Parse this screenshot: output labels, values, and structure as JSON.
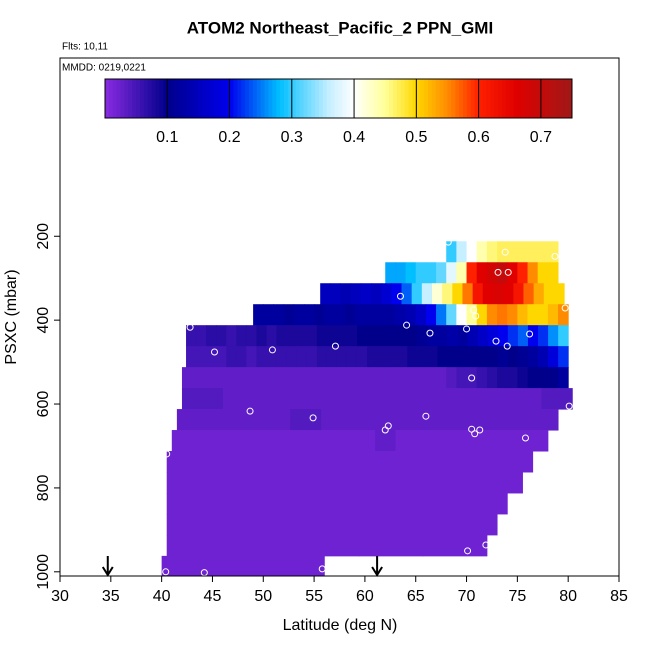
{
  "chart_data": {
    "type": "heatmap",
    "title": "ATOM2 Northeast_Pacific_2 PPN_GMI",
    "subtitle": "Flts: 10,11",
    "annotation": "MMDD: 0219,0221",
    "xlabel": "Latitude (deg N)",
    "ylabel": "PSXC (mbar)",
    "xlim": [
      30,
      85
    ],
    "xticks": [
      30,
      35,
      40,
      45,
      50,
      55,
      60,
      65,
      70,
      75,
      80,
      85
    ],
    "ylim": [
      1010,
      -225
    ],
    "yticks": [
      200,
      400,
      600,
      800,
      1000
    ],
    "colorbar_lim": [
      0,
      0.75
    ],
    "colorbar_ticks": [
      0.1,
      0.2,
      0.3,
      0.4,
      0.5,
      0.6,
      0.7
    ],
    "colorscale": [
      [
        0,
        "#8a2be2"
      ],
      [
        0.1,
        "#00008b"
      ],
      [
        0.2,
        "#0000ee"
      ],
      [
        0.28,
        "#00bfff"
      ],
      [
        0.36,
        "#c6efff"
      ],
      [
        0.4,
        "#ffffff"
      ],
      [
        0.45,
        "#ffff99"
      ],
      [
        0.5,
        "#ffd700"
      ],
      [
        0.55,
        "#ff8c00"
      ],
      [
        0.6,
        "#ff2000"
      ],
      [
        0.66,
        "#e00000"
      ],
      [
        0.75,
        "#a01818"
      ]
    ],
    "rows": [
      {
        "plim": [
          212,
          262
        ],
        "xlim": [
          68,
          79
        ],
        "values": [
          0.3,
          0.36,
          0.4,
          0.44,
          0.46,
          0.47,
          0.47,
          0.47,
          0.47,
          0.47,
          0.47
        ]
      },
      {
        "plim": [
          262,
          312
        ],
        "xlim": [
          62,
          79
        ],
        "values": [
          0.27,
          0.27,
          0.28,
          0.3,
          0.3,
          0.32,
          0.38,
          0.44,
          0.6,
          0.66,
          0.68,
          0.7,
          0.66,
          0.6,
          0.55,
          0.5,
          0.5
        ]
      },
      {
        "plim": [
          312,
          362
        ],
        "xlim": [
          55.6,
          79.6
        ],
        "values": [
          0.15,
          0.15,
          0.14,
          0.15,
          0.16,
          0.15,
          0.17,
          0.2,
          0.24,
          0.3,
          0.36,
          0.42,
          0.46,
          0.5,
          0.56,
          0.62,
          0.66,
          0.67,
          0.66,
          0.62,
          0.57,
          0.53,
          0.5,
          0.5
        ]
      },
      {
        "plim": [
          362,
          412
        ],
        "xlim": [
          49,
          80
        ],
        "values": [
          0.12,
          0.12,
          0.12,
          0.11,
          0.12,
          0.12,
          0.11,
          0.12,
          0.12,
          0.11,
          0.12,
          0.12,
          0.12,
          0.12,
          0.13,
          0.14,
          0.16,
          0.2,
          0.25,
          0.32,
          0.4,
          0.45,
          0.5,
          0.55,
          0.56,
          0.55,
          0.52,
          0.5,
          0.5,
          0.52,
          0.55
        ]
      },
      {
        "plim": [
          412,
          462
        ],
        "xlim": [
          42.4,
          80
        ],
        "values": [
          0.06,
          0.06,
          0.07,
          0.07,
          0.06,
          0.07,
          0.07,
          0.08,
          0.07,
          0.08,
          0.08,
          0.08,
          0.08,
          0.09,
          0.09,
          0.09,
          0.09,
          0.1,
          0.1,
          0.1,
          0.1,
          0.1,
          0.1,
          0.11,
          0.12,
          0.12,
          0.13,
          0.12,
          0.14,
          0.16,
          0.18,
          0.2,
          0.22,
          0.24,
          0.2,
          0.22,
          0.26,
          0.3
        ]
      },
      {
        "plim": [
          462,
          512
        ],
        "xlim": [
          42.4,
          80
        ],
        "values": [
          0.05,
          0.05,
          0.05,
          0.05,
          0.06,
          0.06,
          0.05,
          0.06,
          0.06,
          0.06,
          0.06,
          0.06,
          0.06,
          0.07,
          0.07,
          0.07,
          0.07,
          0.07,
          0.08,
          0.08,
          0.08,
          0.08,
          0.09,
          0.09,
          0.09,
          0.1,
          0.1,
          0.1,
          0.1,
          0.1,
          0.1,
          0.11,
          0.1,
          0.11,
          0.12,
          0.14,
          0.18,
          0.22
        ]
      },
      {
        "plim": [
          512,
          562
        ],
        "xlim": [
          42,
          80
        ],
        "values": [
          0.03,
          0.03,
          0.03,
          0.03,
          0.03,
          0.03,
          0.03,
          0.03,
          0.03,
          0.03,
          0.03,
          0.03,
          0.03,
          0.03,
          0.03,
          0.03,
          0.03,
          0.03,
          0.03,
          0.03,
          0.03,
          0.03,
          0.03,
          0.03,
          0.03,
          0.03,
          0.04,
          0.05,
          0.05,
          0.06,
          0.07,
          0.08,
          0.08,
          0.09,
          0.1,
          0.1,
          0.1,
          0.12
        ]
      },
      {
        "plim": [
          562,
          612
        ],
        "xlim": [
          42,
          80.4
        ],
        "values": [
          0.04,
          0.04,
          0.04,
          0.04,
          0.03,
          0.03,
          0.03,
          0.03,
          0.03,
          0.03,
          0.03,
          0.03,
          0.03,
          0.03,
          0.03,
          0.03,
          0.03,
          0.03,
          0.03,
          0.03,
          0.03,
          0.03,
          0.03,
          0.03,
          0.03,
          0.03,
          0.03,
          0.03,
          0.03,
          0.03,
          0.03,
          0.03,
          0.03,
          0.03,
          0.03,
          0.04,
          0.04,
          0.04
        ]
      },
      {
        "plim": [
          612,
          662
        ],
        "xlim": [
          41.5,
          79
        ],
        "values": [
          0.03,
          0.03,
          0.03,
          0.03,
          0.03,
          0.03,
          0.03,
          0.03,
          0.03,
          0.03,
          0.03,
          0.04,
          0.04,
          0.04,
          0.03,
          0.03,
          0.03,
          0.03,
          0.03,
          0.03,
          0.03,
          0.03,
          0.03,
          0.03,
          0.03,
          0.03,
          0.03,
          0.03,
          0.03,
          0.03,
          0.03,
          0.03,
          0.03,
          0.03,
          0.03,
          0.03,
          0.03
        ]
      },
      {
        "plim": [
          662,
          712
        ],
        "xlim": [
          41,
          78
        ],
        "values": [
          0.02,
          0.02,
          0.02,
          0.02,
          0.02,
          0.02,
          0.02,
          0.02,
          0.02,
          0.02,
          0.02,
          0.02,
          0.02,
          0.02,
          0.02,
          0.02,
          0.02,
          0.02,
          0.02,
          0.02,
          0.03,
          0.03,
          0.02,
          0.02,
          0.02,
          0.02,
          0.02,
          0.02,
          0.02,
          0.02,
          0.02,
          0.02,
          0.02,
          0.02,
          0.02,
          0.02,
          0.02
        ]
      },
      {
        "plim": [
          712,
          762
        ],
        "xlim": [
          40.5,
          76.5
        ],
        "values": [
          0.02,
          0.02,
          0.02,
          0.02,
          0.02,
          0.02,
          0.02,
          0.02,
          0.02,
          0.02,
          0.02,
          0.02
        ]
      },
      {
        "plim": [
          762,
          812
        ],
        "xlim": [
          40.5,
          75.5
        ],
        "values": [
          0.02,
          0.02,
          0.02,
          0.02,
          0.02,
          0.02,
          0.02
        ]
      },
      {
        "plim": [
          812,
          862
        ],
        "xlim": [
          40.5,
          74
        ],
        "values": [
          0.02,
          0.02,
          0.02,
          0.02,
          0.02
        ]
      },
      {
        "plim": [
          862,
          912
        ],
        "xlim": [
          40.5,
          73
        ],
        "values": [
          0.02,
          0.02,
          0.02,
          0.02,
          0.02
        ]
      },
      {
        "plim": [
          912,
          962
        ],
        "xlim": [
          40.5,
          72
        ],
        "values": [
          0.02,
          0.02,
          0.02,
          0.02,
          0.02
        ]
      },
      {
        "plim": [
          962,
          1010
        ],
        "xlim": [
          40,
          56
        ],
        "values": [
          0.02,
          0.02,
          0.02,
          0.02
        ]
      }
    ],
    "points": {
      "x": [
        68.2,
        73.8,
        78.7,
        73.1,
        74.1,
        63.5,
        70.7,
        70.9,
        79.7,
        64.1,
        66.4,
        70.0,
        76.2,
        72.9,
        74.0,
        42.8,
        45.2,
        50.9,
        57.1,
        70.5,
        80.1,
        48.7,
        54.9,
        66.0,
        62.3,
        62.0,
        70.5,
        70.8,
        71.3,
        75.8,
        40.5,
        70.1,
        71.9,
        40.4,
        44.2,
        55.8
      ],
      "y": [
        214,
        238,
        248,
        286,
        286,
        343,
        376,
        390,
        371,
        412,
        431,
        421,
        433,
        450,
        462,
        417,
        476,
        471,
        462,
        538,
        605,
        617,
        633,
        629,
        652,
        662,
        660,
        671,
        662,
        681,
        719,
        950,
        936,
        1000,
        1002,
        993
      ],
      "color": "#ffffff"
    },
    "arrows_lat": [
      34.7,
      61.2
    ]
  }
}
